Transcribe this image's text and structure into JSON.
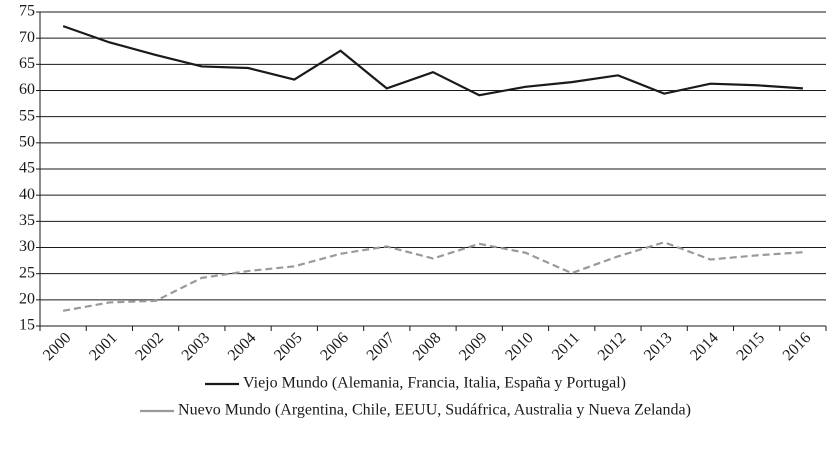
{
  "chart_data": {
    "type": "line",
    "categories": [
      "2000",
      "2001",
      "2002",
      "2003",
      "2004",
      "2005",
      "2006",
      "2007",
      "2008",
      "2009",
      "2010",
      "2011",
      "2012",
      "2013",
      "2014",
      "2015",
      "2016"
    ],
    "series": [
      {
        "name": "Viejo Mundo (Alemania, Francia, Italia, España y Portugal)",
        "color": "#1a1a1a",
        "dash": false,
        "values": [
          72.3,
          69.2,
          66.8,
          64.6,
          64.3,
          62.1,
          67.6,
          60.4,
          63.5,
          59.1,
          60.7,
          61.6,
          62.9,
          59.4,
          61.3,
          61.0,
          60.4
        ]
      },
      {
        "name": "Nuevo Mundo (Argentina, Chile, EEUU, Sudáfrica, Australia y Nueva Zelanda)",
        "color": "#9a9a9a",
        "dash": true,
        "values": [
          17.9,
          19.5,
          19.8,
          24.2,
          25.5,
          26.4,
          28.8,
          30.2,
          27.9,
          30.7,
          29.0,
          25.1,
          28.3,
          31.0,
          27.7,
          28.5,
          29.1
        ]
      }
    ],
    "ylim": [
      15,
      75
    ],
    "yticks": [
      15,
      20,
      25,
      30,
      35,
      40,
      45,
      50,
      55,
      60,
      65,
      70,
      75
    ],
    "grid": true,
    "legend": "bottom"
  }
}
